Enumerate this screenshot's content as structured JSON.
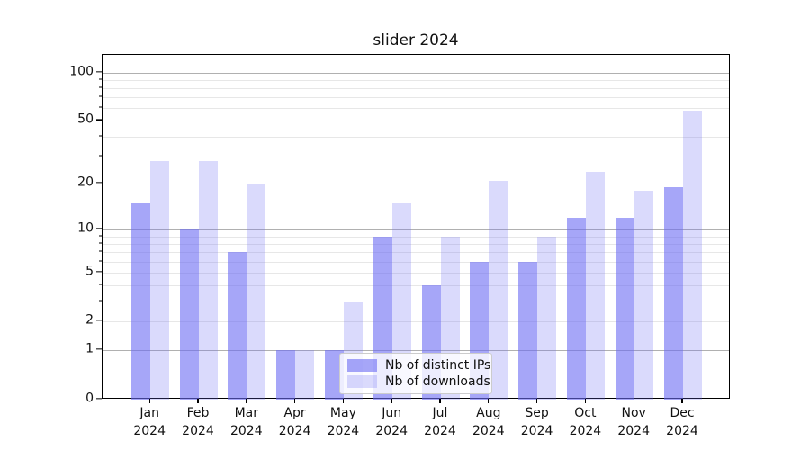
{
  "chart_data": {
    "type": "bar",
    "title": "slider 2024",
    "x_categories": [
      "Jan",
      "Feb",
      "Mar",
      "Apr",
      "May",
      "Jun",
      "Jul",
      "Aug",
      "Sep",
      "Oct",
      "Nov",
      "Dec"
    ],
    "x_year": "2024",
    "series": [
      {
        "name": "Nb of distinct IPs",
        "values": [
          15,
          10,
          7,
          1,
          1,
          9,
          4,
          6,
          6,
          12,
          12,
          19
        ],
        "color": "rgba(106,106,244,0.6)"
      },
      {
        "name": "Nb of downloads",
        "values": [
          28,
          28,
          20,
          1,
          3,
          15,
          9,
          21,
          9,
          24,
          18,
          58
        ],
        "color": "rgba(106,106,244,0.25)"
      }
    ],
    "y_scale": "log1p",
    "ylim": [
      0,
      100
    ],
    "y_labeled_ticks": [
      0,
      1,
      2,
      5,
      10,
      20,
      50,
      100
    ],
    "y_major_gridlines": [
      1,
      10,
      100
    ],
    "y_minor_gridlines": [
      2,
      3,
      4,
      5,
      6,
      7,
      8,
      9,
      20,
      30,
      40,
      50,
      60,
      70,
      80,
      90
    ],
    "grid": "on",
    "legend_position": "lower center",
    "colors": {
      "bar_fill_base": "#6a6af4",
      "grid_major": "#b0b0b0",
      "grid_minor": "#e7e7e7",
      "axis": "#000000",
      "background": "#ffffff"
    }
  }
}
